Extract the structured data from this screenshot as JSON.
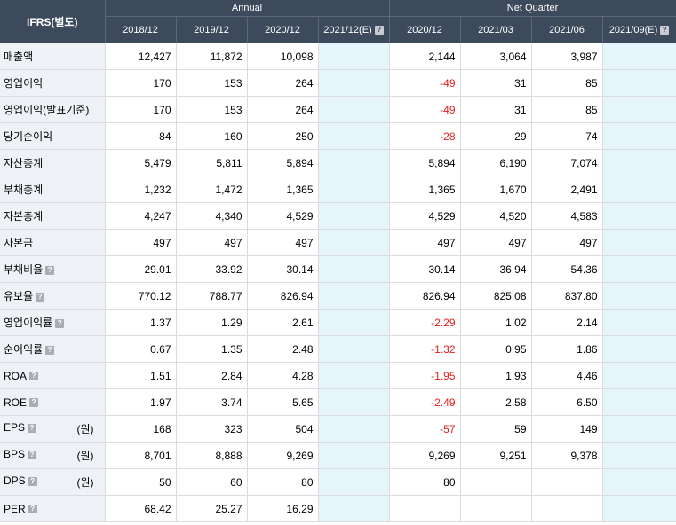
{
  "header": {
    "corner": "IFRS(별도)",
    "annual_label": "Annual",
    "quarter_label": "Net Quarter",
    "annual_periods": [
      "2018/12",
      "2019/12",
      "2020/12",
      "2021/12(E)"
    ],
    "quarter_periods": [
      "2020/12",
      "2021/03",
      "2021/06",
      "2021/09(E)"
    ],
    "help_icon": "question-mark-icon"
  },
  "rows": [
    {
      "label": "매출액",
      "help": false,
      "unit": "",
      "annual": [
        "12,427",
        "11,872",
        "10,098",
        ""
      ],
      "quarter": [
        "2,144",
        "3,064",
        "3,987",
        ""
      ]
    },
    {
      "label": "영업이익",
      "help": false,
      "unit": "",
      "annual": [
        "170",
        "153",
        "264",
        ""
      ],
      "quarter": [
        "-49",
        "31",
        "85",
        ""
      ]
    },
    {
      "label": "영업이익(발표기준)",
      "help": false,
      "unit": "",
      "annual": [
        "170",
        "153",
        "264",
        ""
      ],
      "quarter": [
        "-49",
        "31",
        "85",
        ""
      ]
    },
    {
      "label": "당기순이익",
      "help": false,
      "unit": "",
      "annual": [
        "84",
        "160",
        "250",
        ""
      ],
      "quarter": [
        "-28",
        "29",
        "74",
        ""
      ]
    },
    {
      "label": "자산총계",
      "help": false,
      "unit": "",
      "annual": [
        "5,479",
        "5,811",
        "5,894",
        ""
      ],
      "quarter": [
        "5,894",
        "6,190",
        "7,074",
        ""
      ]
    },
    {
      "label": "부채총계",
      "help": false,
      "unit": "",
      "annual": [
        "1,232",
        "1,472",
        "1,365",
        ""
      ],
      "quarter": [
        "1,365",
        "1,670",
        "2,491",
        ""
      ]
    },
    {
      "label": "자본총계",
      "help": false,
      "unit": "",
      "annual": [
        "4,247",
        "4,340",
        "4,529",
        ""
      ],
      "quarter": [
        "4,529",
        "4,520",
        "4,583",
        ""
      ]
    },
    {
      "label": "자본금",
      "help": false,
      "unit": "",
      "annual": [
        "497",
        "497",
        "497",
        ""
      ],
      "quarter": [
        "497",
        "497",
        "497",
        ""
      ]
    },
    {
      "label": "부채비율",
      "help": true,
      "unit": "",
      "annual": [
        "29.01",
        "33.92",
        "30.14",
        ""
      ],
      "quarter": [
        "30.14",
        "36.94",
        "54.36",
        ""
      ]
    },
    {
      "label": "유보율",
      "help": true,
      "unit": "",
      "annual": [
        "770.12",
        "788.77",
        "826.94",
        ""
      ],
      "quarter": [
        "826.94",
        "825.08",
        "837.80",
        ""
      ]
    },
    {
      "label": "영업이익률",
      "help": true,
      "unit": "",
      "annual": [
        "1.37",
        "1.29",
        "2.61",
        ""
      ],
      "quarter": [
        "-2.29",
        "1.02",
        "2.14",
        ""
      ]
    },
    {
      "label": "순이익률",
      "help": true,
      "unit": "",
      "annual": [
        "0.67",
        "1.35",
        "2.48",
        ""
      ],
      "quarter": [
        "-1.32",
        "0.95",
        "1.86",
        ""
      ]
    },
    {
      "label": "ROA",
      "help": true,
      "unit": "",
      "annual": [
        "1.51",
        "2.84",
        "4.28",
        ""
      ],
      "quarter": [
        "-1.95",
        "1.93",
        "4.46",
        ""
      ]
    },
    {
      "label": "ROE",
      "help": true,
      "unit": "",
      "annual": [
        "1.97",
        "3.74",
        "5.65",
        ""
      ],
      "quarter": [
        "-2.49",
        "2.58",
        "6.50",
        ""
      ]
    },
    {
      "label": "EPS",
      "help": true,
      "unit": "(원)",
      "annual": [
        "168",
        "323",
        "504",
        ""
      ],
      "quarter": [
        "-57",
        "59",
        "149",
        ""
      ]
    },
    {
      "label": "BPS",
      "help": true,
      "unit": "(원)",
      "annual": [
        "8,701",
        "8,888",
        "9,269",
        ""
      ],
      "quarter": [
        "9,269",
        "9,251",
        "9,378",
        ""
      ]
    },
    {
      "label": "DPS",
      "help": true,
      "unit": "(원)",
      "annual": [
        "50",
        "60",
        "80",
        ""
      ],
      "quarter": [
        "80",
        "",
        "",
        ""
      ]
    },
    {
      "label": "PER",
      "help": true,
      "unit": "",
      "annual": [
        "68.42",
        "25.27",
        "16.29",
        ""
      ],
      "quarter": [
        "",
        "",
        "",
        ""
      ]
    }
  ]
}
